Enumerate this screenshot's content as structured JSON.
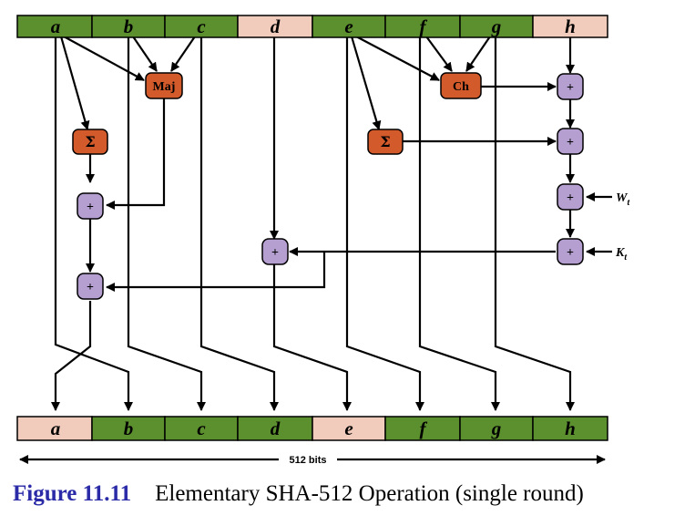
{
  "top_register": [
    {
      "label": "a",
      "color": "#5c8f2e"
    },
    {
      "label": "b",
      "color": "#5c8f2e"
    },
    {
      "label": "c",
      "color": "#5c8f2e"
    },
    {
      "label": "d",
      "color": "#f1cbbb"
    },
    {
      "label": "e",
      "color": "#5c8f2e"
    },
    {
      "label": "f",
      "color": "#5c8f2e"
    },
    {
      "label": "g",
      "color": "#5c8f2e"
    },
    {
      "label": "h",
      "color": "#f1cbbb"
    }
  ],
  "bottom_register": [
    {
      "label": "a",
      "color": "#f1cbbb"
    },
    {
      "label": "b",
      "color": "#5c8f2e"
    },
    {
      "label": "c",
      "color": "#5c8f2e"
    },
    {
      "label": "d",
      "color": "#5c8f2e"
    },
    {
      "label": "e",
      "color": "#f1cbbb"
    },
    {
      "label": "f",
      "color": "#5c8f2e"
    },
    {
      "label": "g",
      "color": "#5c8f2e"
    },
    {
      "label": "h",
      "color": "#5c8f2e"
    }
  ],
  "functions": {
    "maj": "Maj",
    "ch": "Ch",
    "sigma_a": "Σ",
    "sigma_e": "Σ",
    "color": "#d35a2a"
  },
  "adder": {
    "symbol": "+",
    "color": "#b49fd0"
  },
  "inputs": {
    "w": {
      "main": "W",
      "sub": "t"
    },
    "k": {
      "main": "K",
      "sub": "t"
    }
  },
  "width_label": "512 bits",
  "caption": {
    "label": "Figure 11.11",
    "text": "Elementary SHA-512 Operation (single round)"
  }
}
